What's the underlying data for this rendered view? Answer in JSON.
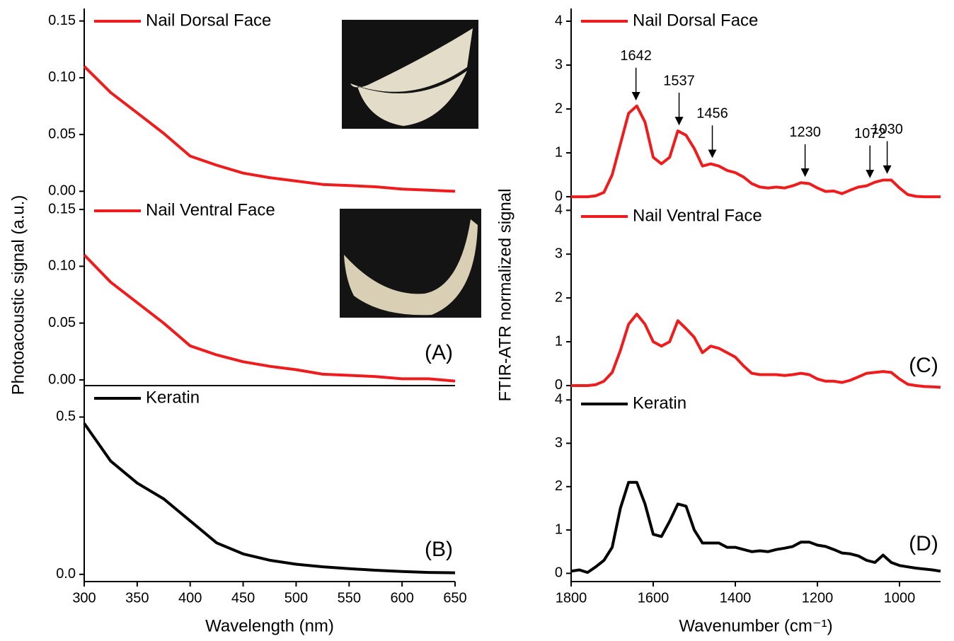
{
  "chart_data": [
    {
      "type": "line",
      "x": [
        300,
        325,
        350,
        375,
        400,
        425,
        450,
        475,
        500,
        525,
        550,
        575,
        600,
        625,
        650
      ],
      "xlim": [
        300,
        650
      ],
      "ylim": [
        -0.006,
        0.161
      ],
      "yticks": [
        {
          "value": 0,
          "label": "0.00"
        },
        {
          "value": 0.05,
          "label": "0.05"
        },
        {
          "value": 0.1,
          "label": "0.10"
        },
        {
          "value": 0.15,
          "label": "0.15"
        }
      ],
      "ylabel": "Photoacoustic signal (a.u.)",
      "series": [
        {
          "name": "Nail Dorsal Face",
          "color": "#ee1c1c",
          "values": [
            0.11,
            0.087,
            0.069,
            0.051,
            0.031,
            0.023,
            0.016,
            0.012,
            0.009,
            0.006,
            0.005,
            0.004,
            0.002,
            0.001,
            0.0
          ]
        }
      ]
    },
    {
      "type": "line",
      "x": [
        300,
        325,
        350,
        375,
        400,
        425,
        450,
        475,
        500,
        525,
        550,
        575,
        600,
        625,
        650
      ],
      "xlim": [
        300,
        650
      ],
      "ylim": [
        -0.005,
        0.16
      ],
      "yticks": [
        {
          "value": 0,
          "label": "0.00"
        },
        {
          "value": 0.05,
          "label": "0.05"
        },
        {
          "value": 0.1,
          "label": "0.10"
        },
        {
          "value": 0.15,
          "label": "0.15"
        }
      ],
      "label": "(A)",
      "series": [
        {
          "name": "Nail Ventral Face",
          "color": "#ee1c1c",
          "values": [
            0.11,
            0.086,
            0.068,
            0.05,
            0.03,
            0.022,
            0.016,
            0.012,
            0.009,
            0.005,
            0.004,
            0.003,
            0.001,
            0.001,
            -0.001
          ]
        }
      ]
    },
    {
      "type": "line",
      "x": [
        300,
        325,
        350,
        375,
        400,
        425,
        450,
        475,
        500,
        525,
        550,
        575,
        600,
        625,
        650
      ],
      "xlim": [
        300,
        650
      ],
      "ylim": [
        -0.023,
        0.6
      ],
      "xticks": [
        300,
        350,
        400,
        450,
        500,
        550,
        600,
        650
      ],
      "xlabel": "Wavelength (nm)",
      "yticks": [
        {
          "value": 0,
          "label": "0.0"
        },
        {
          "value": 0.5,
          "label": "0.5"
        }
      ],
      "label": "(B)",
      "series": [
        {
          "name": "Keratin",
          "color": "#000000",
          "values": [
            0.48,
            0.36,
            0.29,
            0.24,
            0.17,
            0.1,
            0.065,
            0.045,
            0.032,
            0.024,
            0.018,
            0.013,
            0.009,
            0.006,
            0.005
          ]
        }
      ]
    },
    {
      "type": "line",
      "x": [
        1800,
        1780,
        1760,
        1740,
        1720,
        1700,
        1680,
        1660,
        1640,
        1620,
        1600,
        1580,
        1560,
        1540,
        1520,
        1500,
        1480,
        1460,
        1440,
        1420,
        1400,
        1380,
        1360,
        1340,
        1320,
        1300,
        1280,
        1260,
        1240,
        1220,
        1200,
        1180,
        1160,
        1140,
        1120,
        1100,
        1080,
        1060,
        1040,
        1020,
        1000,
        980,
        960,
        940,
        920,
        900
      ],
      "xlim": [
        1800,
        900
      ],
      "ylim": [
        -0.16,
        4.29
      ],
      "yticks": [
        0,
        1,
        2,
        3,
        4
      ],
      "ylabel": "FTIR-ATR normalized signal",
      "annotations": [
        1642,
        1537,
        1456,
        1230,
        1072,
        1030
      ],
      "series": [
        {
          "name": "Nail Dorsal Face",
          "color": "#ee1c1c",
          "values": [
            0,
            0,
            0,
            0.02,
            0.1,
            0.5,
            1.2,
            1.9,
            2.07,
            1.7,
            0.9,
            0.75,
            0.9,
            1.5,
            1.4,
            1.1,
            0.7,
            0.75,
            0.7,
            0.6,
            0.55,
            0.45,
            0.3,
            0.22,
            0.2,
            0.22,
            0.2,
            0.25,
            0.32,
            0.3,
            0.2,
            0.12,
            0.13,
            0.07,
            0.15,
            0.22,
            0.25,
            0.33,
            0.38,
            0.38,
            0.2,
            0.05,
            0.01,
            0,
            0,
            0
          ]
        }
      ]
    },
    {
      "type": "line",
      "x": [
        1800,
        1780,
        1760,
        1740,
        1720,
        1700,
        1680,
        1660,
        1640,
        1620,
        1600,
        1580,
        1560,
        1540,
        1520,
        1500,
        1480,
        1460,
        1440,
        1420,
        1400,
        1380,
        1360,
        1340,
        1320,
        1300,
        1280,
        1260,
        1240,
        1220,
        1200,
        1180,
        1160,
        1140,
        1120,
        1100,
        1080,
        1060,
        1040,
        1020,
        1000,
        980,
        960,
        940,
        920,
        900
      ],
      "xlim": [
        1800,
        900
      ],
      "ylim": [
        -0.13,
        4.15
      ],
      "yticks": [
        0,
        1,
        2,
        3,
        4
      ],
      "label": "(C)",
      "series": [
        {
          "name": "Nail Ventral Face",
          "color": "#ee1c1c",
          "values": [
            0,
            0,
            0,
            0.02,
            0.1,
            0.3,
            0.8,
            1.4,
            1.63,
            1.4,
            1.0,
            0.9,
            1.0,
            1.48,
            1.3,
            1.1,
            0.75,
            0.9,
            0.85,
            0.75,
            0.65,
            0.45,
            0.28,
            0.25,
            0.25,
            0.25,
            0.23,
            0.25,
            0.28,
            0.25,
            0.15,
            0.1,
            0.1,
            0.07,
            0.12,
            0.2,
            0.28,
            0.3,
            0.32,
            0.3,
            0.15,
            0.03,
            0,
            -0.02,
            -0.03,
            -0.04
          ]
        }
      ]
    },
    {
      "type": "line",
      "x": [
        1800,
        1780,
        1760,
        1740,
        1720,
        1700,
        1680,
        1660,
        1640,
        1620,
        1600,
        1580,
        1560,
        1540,
        1520,
        1500,
        1480,
        1460,
        1440,
        1420,
        1400,
        1380,
        1360,
        1340,
        1320,
        1300,
        1280,
        1260,
        1240,
        1220,
        1200,
        1180,
        1160,
        1140,
        1120,
        1100,
        1080,
        1060,
        1040,
        1020,
        1000,
        980,
        960,
        940,
        920,
        900
      ],
      "xlim": [
        1800,
        900
      ],
      "ylim": [
        -0.19,
        4.2
      ],
      "yticks": [
        0,
        1,
        2,
        3,
        4
      ],
      "xticks": [
        1800,
        1600,
        1400,
        1200,
        1000
      ],
      "xlabel": "Wavenumber (cm⁻¹)",
      "label": "(D)",
      "series": [
        {
          "name": "Keratin",
          "color": "#000000",
          "values": [
            0.05,
            0.08,
            0.02,
            0.15,
            0.3,
            0.6,
            1.5,
            2.1,
            2.1,
            1.6,
            0.9,
            0.85,
            1.2,
            1.6,
            1.55,
            1.0,
            0.7,
            0.7,
            0.7,
            0.6,
            0.6,
            0.55,
            0.5,
            0.52,
            0.5,
            0.55,
            0.58,
            0.62,
            0.72,
            0.72,
            0.65,
            0.62,
            0.55,
            0.47,
            0.45,
            0.4,
            0.3,
            0.25,
            0.42,
            0.25,
            0.18,
            0.15,
            0.12,
            0.1,
            0.08,
            0.05
          ]
        }
      ]
    }
  ]
}
